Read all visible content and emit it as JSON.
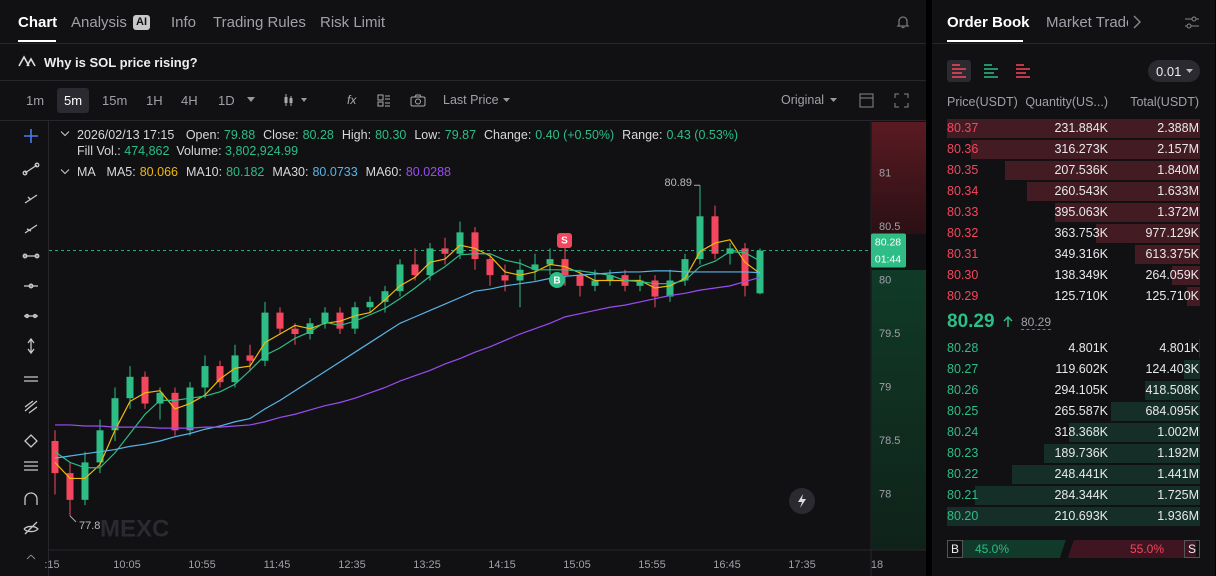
{
  "tabs": [
    "Chart",
    "Analysis",
    "Info",
    "Trading Rules",
    "Risk Limit"
  ],
  "ai_badge": "AI",
  "question": "Why is SOL price rising?",
  "intervals": [
    "1m",
    "5m",
    "15m",
    "1H",
    "4H",
    "1D"
  ],
  "price_type": "Last Price",
  "view": "Original",
  "info": {
    "time": "2026/02/13 17:15",
    "fields": [
      {
        "label": "Open:",
        "value": "79.88"
      },
      {
        "label": "Close:",
        "value": "80.28"
      },
      {
        "label": "High:",
        "value": "80.30"
      },
      {
        "label": "Low:",
        "value": "79.87"
      },
      {
        "label": "Change:",
        "value": "0.40 (+0.50%)"
      },
      {
        "label": "Range:",
        "value": "0.43 (0.53%)"
      }
    ],
    "fill_vol_label": "Fill Vol.:",
    "fill_vol": "474,862",
    "volume_label": "Volume:",
    "volume": "3,802,924.99",
    "ma_title": "MA"
  },
  "chart": {
    "type": "candlestick",
    "up_color": "#2dbd85",
    "down_color": "#f6465d",
    "ylim": [
      77.5,
      81.5
    ],
    "yticks": [
      78,
      78.5,
      79,
      79.5,
      80,
      80.5,
      81
    ],
    "xticks": [
      ":15",
      "10:05",
      "10:55",
      "11:45",
      "12:35",
      "13:25",
      "14:15",
      "15:05",
      "15:55",
      "16:45",
      "17:35",
      "18"
    ],
    "candles": [
      {
        "o": 78.5,
        "h": 78.6,
        "l": 78.0,
        "c": 78.2
      },
      {
        "o": 78.2,
        "h": 78.3,
        "l": 77.8,
        "c": 77.95
      },
      {
        "o": 77.95,
        "h": 78.4,
        "l": 77.9,
        "c": 78.3
      },
      {
        "o": 78.3,
        "h": 78.7,
        "l": 78.2,
        "c": 78.6
      },
      {
        "o": 78.6,
        "h": 79.0,
        "l": 78.5,
        "c": 78.9
      },
      {
        "o": 78.9,
        "h": 79.2,
        "l": 78.8,
        "c": 79.1
      },
      {
        "o": 79.1,
        "h": 79.15,
        "l": 78.8,
        "c": 78.85
      },
      {
        "o": 78.85,
        "h": 79.0,
        "l": 78.7,
        "c": 78.95
      },
      {
        "o": 78.95,
        "h": 79.0,
        "l": 78.55,
        "c": 78.6
      },
      {
        "o": 78.6,
        "h": 79.05,
        "l": 78.55,
        "c": 79.0
      },
      {
        "o": 79.0,
        "h": 79.3,
        "l": 78.9,
        "c": 79.2
      },
      {
        "o": 79.2,
        "h": 79.25,
        "l": 79.0,
        "c": 79.05
      },
      {
        "o": 79.05,
        "h": 79.4,
        "l": 79.0,
        "c": 79.3
      },
      {
        "o": 79.3,
        "h": 79.4,
        "l": 79.15,
        "c": 79.25
      },
      {
        "o": 79.25,
        "h": 79.8,
        "l": 79.2,
        "c": 79.7
      },
      {
        "o": 79.7,
        "h": 79.75,
        "l": 79.5,
        "c": 79.55
      },
      {
        "o": 79.55,
        "h": 79.6,
        "l": 79.4,
        "c": 79.5
      },
      {
        "o": 79.5,
        "h": 79.65,
        "l": 79.45,
        "c": 79.6
      },
      {
        "o": 79.6,
        "h": 79.75,
        "l": 79.55,
        "c": 79.7
      },
      {
        "o": 79.7,
        "h": 79.75,
        "l": 79.5,
        "c": 79.55
      },
      {
        "o": 79.55,
        "h": 79.8,
        "l": 79.5,
        "c": 79.75
      },
      {
        "o": 79.75,
        "h": 79.85,
        "l": 79.7,
        "c": 79.8
      },
      {
        "o": 79.8,
        "h": 79.95,
        "l": 79.7,
        "c": 79.9
      },
      {
        "o": 79.9,
        "h": 80.2,
        "l": 79.85,
        "c": 80.15
      },
      {
        "o": 80.15,
        "h": 80.3,
        "l": 80.0,
        "c": 80.05
      },
      {
        "o": 80.05,
        "h": 80.35,
        "l": 80.0,
        "c": 80.3
      },
      {
        "o": 80.3,
        "h": 80.4,
        "l": 80.15,
        "c": 80.25
      },
      {
        "o": 80.25,
        "h": 80.55,
        "l": 80.2,
        "c": 80.45
      },
      {
        "o": 80.45,
        "h": 80.5,
        "l": 80.1,
        "c": 80.2
      },
      {
        "o": 80.2,
        "h": 80.25,
        "l": 79.95,
        "c": 80.05
      },
      {
        "o": 80.05,
        "h": 80.15,
        "l": 79.9,
        "c": 80.0
      },
      {
        "o": 80.0,
        "h": 80.2,
        "l": 79.75,
        "c": 80.1
      },
      {
        "o": 80.1,
        "h": 80.25,
        "l": 80.0,
        "c": 80.15
      },
      {
        "o": 80.15,
        "h": 80.3,
        "l": 80.05,
        "c": 80.2
      },
      {
        "o": 80.2,
        "h": 80.35,
        "l": 79.95,
        "c": 80.05
      },
      {
        "o": 80.05,
        "h": 80.1,
        "l": 79.85,
        "c": 79.95
      },
      {
        "o": 79.95,
        "h": 80.1,
        "l": 79.9,
        "c": 80.0
      },
      {
        "o": 80.0,
        "h": 80.1,
        "l": 79.95,
        "c": 80.05
      },
      {
        "o": 80.05,
        "h": 80.1,
        "l": 79.9,
        "c": 79.95
      },
      {
        "o": 79.95,
        "h": 80.05,
        "l": 79.9,
        "c": 80.0
      },
      {
        "o": 80.0,
        "h": 80.05,
        "l": 79.75,
        "c": 79.85
      },
      {
        "o": 79.85,
        "h": 80.1,
        "l": 79.8,
        "c": 80.0
      },
      {
        "o": 80.0,
        "h": 80.25,
        "l": 79.95,
        "c": 80.2
      },
      {
        "o": 80.2,
        "h": 80.89,
        "l": 80.15,
        "c": 80.6
      },
      {
        "o": 80.6,
        "h": 80.7,
        "l": 80.2,
        "c": 80.25
      },
      {
        "o": 80.25,
        "h": 80.35,
        "l": 80.15,
        "c": 80.3
      },
      {
        "o": 80.3,
        "h": 80.35,
        "l": 79.85,
        "c": 79.95
      },
      {
        "o": 79.88,
        "h": 80.3,
        "l": 79.87,
        "c": 80.28
      }
    ],
    "ma": [
      {
        "name": "MA5:",
        "color": "#f0b90b",
        "values": [
          78.3,
          78.15,
          78.15,
          78.28,
          78.6,
          78.87,
          78.95,
          78.97,
          78.8,
          78.85,
          78.93,
          79.08,
          79.18,
          79.2,
          79.42,
          79.5,
          79.58,
          79.55,
          79.6,
          79.62,
          79.67,
          79.7,
          79.82,
          79.95,
          80.03,
          80.17,
          80.2,
          80.33,
          80.3,
          80.23,
          80.08,
          80.05,
          80.08,
          80.15,
          80.13,
          80.07,
          80.0,
          80.0,
          80.0,
          80.0,
          79.93,
          79.95,
          80.02,
          80.27,
          80.35,
          80.38,
          80.17,
          80.066
        ]
      },
      {
        "name": "MA10:",
        "color": "#2dbd85",
        "values": [
          78.4,
          78.3,
          78.25,
          78.25,
          78.39,
          78.57,
          78.75,
          78.88,
          78.88,
          78.9,
          78.92,
          78.96,
          79.03,
          79.16,
          79.3,
          79.37,
          79.46,
          79.52,
          79.61,
          79.58,
          79.62,
          79.68,
          79.74,
          79.83,
          79.93,
          80.04,
          80.13,
          80.24,
          80.25,
          80.25,
          80.19,
          80.16,
          80.1,
          80.1,
          80.1,
          80.09,
          80.07,
          80.05,
          80.0,
          79.99,
          79.97,
          79.97,
          80.0,
          80.13,
          80.18,
          80.27,
          80.26,
          80.182
        ]
      },
      {
        "name": "MA30:",
        "color": "#5ab4e6",
        "values": [
          78.34,
          78.36,
          78.38,
          78.4,
          78.42,
          78.45,
          78.47,
          78.5,
          78.54,
          78.57,
          78.61,
          78.64,
          78.68,
          78.71,
          78.8,
          78.88,
          78.97,
          79.06,
          79.15,
          79.24,
          79.33,
          79.42,
          79.51,
          79.6,
          79.66,
          79.72,
          79.78,
          79.84,
          79.9,
          79.92,
          79.95,
          79.97,
          79.99,
          80.02,
          80.04,
          80.05,
          80.06,
          80.07,
          80.08,
          80.08,
          80.09,
          80.09,
          80.08,
          80.08,
          80.08,
          80.08,
          80.08,
          80.0733
        ]
      },
      {
        "name": "MA60:",
        "color": "#9b4cf0",
        "values": [
          78.65,
          78.65,
          78.64,
          78.64,
          78.63,
          78.63,
          78.63,
          78.62,
          78.62,
          78.62,
          78.63,
          78.63,
          78.64,
          78.65,
          78.68,
          78.72,
          78.75,
          78.79,
          78.83,
          78.86,
          78.9,
          78.95,
          79.0,
          79.06,
          79.11,
          79.16,
          79.22,
          79.27,
          79.33,
          79.38,
          79.44,
          79.5,
          79.55,
          79.6,
          79.66,
          79.69,
          79.72,
          79.75,
          79.77,
          79.8,
          79.83,
          79.86,
          79.88,
          79.91,
          79.93,
          79.95,
          79.99,
          80.0288
        ]
      }
    ],
    "countdown": "01:44",
    "markers": [
      "S",
      "B"
    ],
    "watermark": "MEXC"
  },
  "order_book": {
    "tabs": [
      "Order Book",
      "Market Trades"
    ],
    "precision": "0.01",
    "columns": [
      "Price(USDT)",
      "Quantity(US...)",
      "Total(USDT)"
    ],
    "asks": [
      {
        "price": "80.37",
        "quantity": "231.884K",
        "total": {
          "value": 2388000,
          "label": "2.388M"
        }
      },
      {
        "price": "80.36",
        "quantity": "316.273K",
        "total": {
          "value": 2157000,
          "label": "2.157M"
        }
      },
      {
        "price": "80.35",
        "quantity": "207.536K",
        "total": {
          "value": 1840000,
          "label": "1.840M"
        }
      },
      {
        "price": "80.34",
        "quantity": "260.543K",
        "total": {
          "value": 1633000,
          "label": "1.633M"
        }
      },
      {
        "price": "80.33",
        "quantity": "395.063K",
        "total": {
          "value": 1372000,
          "label": "1.372M"
        }
      },
      {
        "price": "80.32",
        "quantity": "363.753K",
        "total": {
          "value": 977129,
          "label": "977.129K"
        }
      },
      {
        "price": "80.31",
        "quantity": "349.316K",
        "total": {
          "value": 613375,
          "label": "613.375K"
        }
      },
      {
        "price": "80.30",
        "quantity": "138.349K",
        "total": {
          "value": 264059,
          "label": "264.059K"
        }
      },
      {
        "price": "80.29",
        "quantity": "125.710K",
        "total": {
          "value": 125710,
          "label": "125.710K"
        }
      }
    ],
    "last_price": "80.29",
    "mark_price": "80.29",
    "bids": [
      {
        "price": "80.28",
        "quantity": "4.801K",
        "total": {
          "value": 4801,
          "label": "4.801K"
        }
      },
      {
        "price": "80.27",
        "quantity": "119.602K",
        "total": {
          "value": 124403,
          "label": "124.403K"
        }
      },
      {
        "price": "80.26",
        "quantity": "294.105K",
        "total": {
          "value": 418508,
          "label": "418.508K"
        }
      },
      {
        "price": "80.25",
        "quantity": "265.587K",
        "total": {
          "value": 684095,
          "label": "684.095K"
        }
      },
      {
        "price": "80.24",
        "quantity": "318.368K",
        "total": {
          "value": 1002000,
          "label": "1.002M"
        }
      },
      {
        "price": "80.23",
        "quantity": "189.736K",
        "total": {
          "value": 1192000,
          "label": "1.192M"
        }
      },
      {
        "price": "80.22",
        "quantity": "248.441K",
        "total": {
          "value": 1441000,
          "label": "1.441M"
        }
      },
      {
        "price": "80.21",
        "quantity": "284.344K",
        "total": {
          "value": 1725000,
          "label": "1.725M"
        }
      },
      {
        "price": "80.20",
        "quantity": "210.693K",
        "total": {
          "value": 1936000,
          "label": "1.936M"
        }
      }
    ],
    "ratio": {
      "buy_label": "B",
      "buy": {
        "value": 45,
        "label": "45.0%"
      },
      "sell_label": "S",
      "sell": {
        "value": 55,
        "label": "55.0%"
      }
    }
  }
}
